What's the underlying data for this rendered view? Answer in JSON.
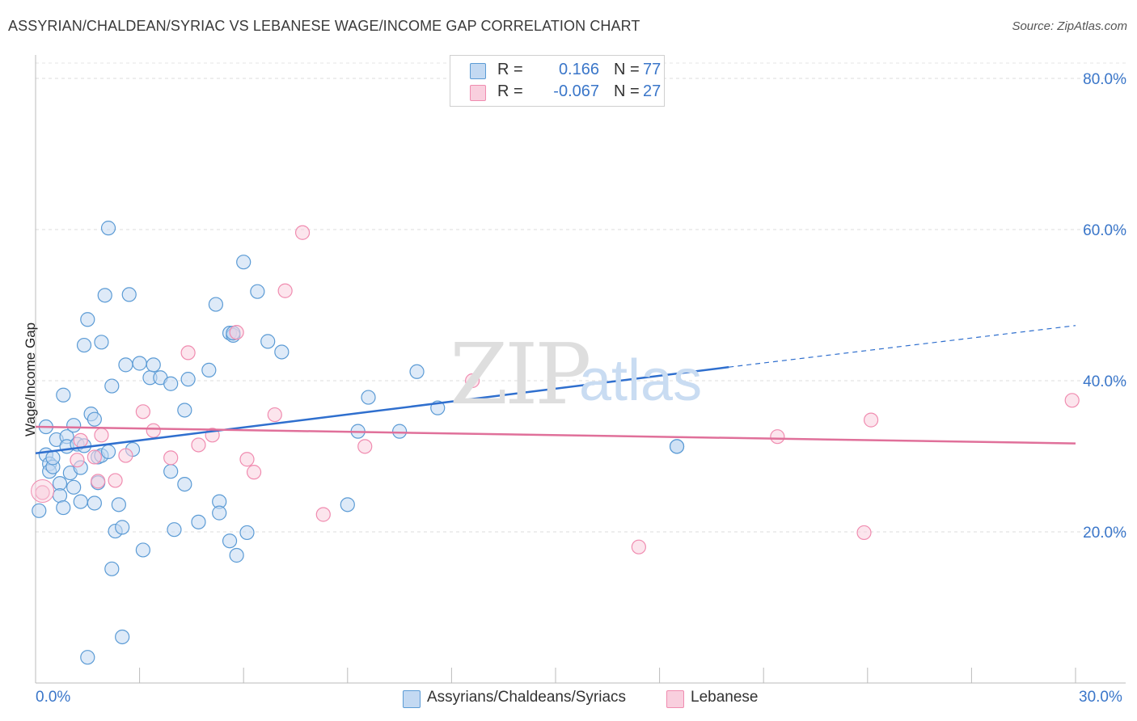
{
  "title": "ASSYRIAN/CHALDEAN/SYRIAC VS LEBANESE WAGE/INCOME GAP CORRELATION CHART",
  "source": "Source: ZipAtlas.com",
  "watermark": {
    "zip": "ZIP",
    "atlas": "atlas"
  },
  "legend": {
    "rows": [
      {
        "r_label": "R =",
        "r_value": "0.166",
        "n_label": "N =",
        "n_value": "77",
        "color": "#5b9bd5"
      },
      {
        "r_label": "R =",
        "r_value": "-0.067",
        "n_label": "N =",
        "n_value": "27",
        "color": "#f08cb0"
      }
    ]
  },
  "chart_data": {
    "type": "scatter",
    "title": "ASSYRIAN/CHALDEAN/SYRIAC VS LEBANESE WAGE/INCOME GAP CORRELATION CHART",
    "xlabel": "",
    "ylabel": "Wage/Income Gap",
    "xlim": [
      0,
      30
    ],
    "ylim": [
      0,
      80
    ],
    "x_tick_labels": [
      "0.0%",
      "30.0%"
    ],
    "y_ticks": [
      20,
      40,
      60,
      80
    ],
    "y_tick_labels": [
      "20.0%",
      "40.0%",
      "60.0%",
      "80.0%"
    ],
    "grid": true,
    "series": [
      {
        "name": "Assyrians/Chaldeans/Syriacs",
        "color": "#5b9bd5",
        "fill": "#c3d9f2",
        "trend": {
          "x": [
            0,
            20
          ],
          "y": [
            30.4,
            41.8
          ],
          "dashed_to": [
            30,
            47.3
          ]
        },
        "points": [
          [
            0.1,
            22.8
          ],
          [
            0.3,
            30.2
          ],
          [
            0.3,
            33.9
          ],
          [
            0.4,
            29.0
          ],
          [
            0.4,
            28.0
          ],
          [
            0.5,
            28.6
          ],
          [
            0.5,
            29.8
          ],
          [
            0.6,
            32.2
          ],
          [
            0.7,
            26.4
          ],
          [
            0.7,
            24.8
          ],
          [
            0.8,
            23.2
          ],
          [
            0.8,
            38.1
          ],
          [
            0.9,
            32.6
          ],
          [
            0.9,
            31.3
          ],
          [
            1.0,
            27.8
          ],
          [
            1.1,
            34.1
          ],
          [
            1.1,
            25.9
          ],
          [
            1.2,
            31.6
          ],
          [
            1.3,
            28.5
          ],
          [
            1.3,
            24.0
          ],
          [
            1.4,
            31.4
          ],
          [
            1.4,
            44.7
          ],
          [
            1.5,
            3.4
          ],
          [
            1.5,
            48.1
          ],
          [
            1.6,
            35.6
          ],
          [
            1.7,
            34.9
          ],
          [
            1.7,
            23.8
          ],
          [
            1.8,
            26.5
          ],
          [
            1.8,
            29.9
          ],
          [
            1.9,
            45.1
          ],
          [
            1.9,
            30.1
          ],
          [
            2.0,
            51.3
          ],
          [
            2.1,
            60.2
          ],
          [
            2.1,
            30.6
          ],
          [
            2.2,
            39.3
          ],
          [
            2.2,
            15.1
          ],
          [
            2.3,
            20.1
          ],
          [
            2.4,
            23.6
          ],
          [
            2.5,
            6.1
          ],
          [
            2.5,
            20.6
          ],
          [
            2.6,
            42.1
          ],
          [
            2.7,
            51.4
          ],
          [
            2.8,
            30.9
          ],
          [
            3.0,
            42.3
          ],
          [
            3.1,
            17.6
          ],
          [
            3.3,
            40.4
          ],
          [
            3.4,
            42.1
          ],
          [
            3.6,
            40.4
          ],
          [
            3.9,
            28.0
          ],
          [
            3.9,
            39.6
          ],
          [
            4.0,
            20.3
          ],
          [
            4.3,
            26.3
          ],
          [
            4.3,
            36.1
          ],
          [
            4.4,
            40.2
          ],
          [
            4.7,
            21.3
          ],
          [
            5.0,
            41.4
          ],
          [
            5.2,
            50.1
          ],
          [
            5.3,
            24.0
          ],
          [
            5.3,
            22.5
          ],
          [
            5.6,
            18.8
          ],
          [
            5.6,
            46.3
          ],
          [
            5.7,
            46.0
          ],
          [
            5.8,
            16.9
          ],
          [
            6.0,
            55.7
          ],
          [
            6.1,
            19.9
          ],
          [
            6.4,
            51.8
          ],
          [
            6.7,
            45.2
          ],
          [
            7.1,
            43.8
          ],
          [
            9.0,
            23.6
          ],
          [
            9.3,
            33.3
          ],
          [
            9.6,
            37.8
          ],
          [
            10.5,
            33.3
          ],
          [
            11.0,
            41.2
          ],
          [
            11.6,
            36.4
          ],
          [
            18.5,
            31.3
          ],
          [
            18.5,
            31.3
          ],
          [
            5.7,
            46.3
          ]
        ]
      },
      {
        "name": "Lebanese",
        "color": "#f08cb0",
        "fill": "#f9cfde",
        "trend": {
          "x": [
            0,
            30
          ],
          "y": [
            33.9,
            31.7
          ]
        },
        "points": [
          [
            0.2,
            25.2
          ],
          [
            1.2,
            29.5
          ],
          [
            1.3,
            32.1
          ],
          [
            1.7,
            29.9
          ],
          [
            1.8,
            26.7
          ],
          [
            1.9,
            32.8
          ],
          [
            2.3,
            26.8
          ],
          [
            2.6,
            30.1
          ],
          [
            3.1,
            35.9
          ],
          [
            3.4,
            33.4
          ],
          [
            3.9,
            29.8
          ],
          [
            4.4,
            43.7
          ],
          [
            4.7,
            31.5
          ],
          [
            5.1,
            32.8
          ],
          [
            5.8,
            46.4
          ],
          [
            6.1,
            29.6
          ],
          [
            6.3,
            27.9
          ],
          [
            6.9,
            35.5
          ],
          [
            7.2,
            51.9
          ],
          [
            7.7,
            59.6
          ],
          [
            8.3,
            22.3
          ],
          [
            9.5,
            31.3
          ],
          [
            12.6,
            40.0
          ],
          [
            17.4,
            18.0
          ],
          [
            21.4,
            32.6
          ],
          [
            23.9,
            19.9
          ],
          [
            24.1,
            34.8
          ]
        ]
      }
    ],
    "extra_points": {
      "Lebanese": [
        [
          29.9,
          37.4
        ]
      ]
    }
  },
  "bottom_legend": [
    {
      "label": "Assyrians/Chaldeans/Syriacs",
      "color": "#5b9bd5",
      "fill": "#c3d9f2"
    },
    {
      "label": "Lebanese",
      "color": "#f08cb0",
      "fill": "#f9cfde"
    }
  ]
}
